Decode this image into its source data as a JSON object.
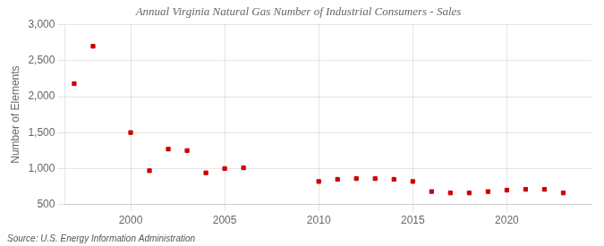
{
  "chart_data": {
    "type": "scatter",
    "title": "Annual Virginia Natural Gas Number of Industrial Consumers - Sales",
    "ylabel": "Number of Elements",
    "annotation": "Source: U.S. Energy Information Administration",
    "x": [
      1997,
      1998,
      2000,
      2001,
      2002,
      2003,
      2004,
      2005,
      2006,
      2010,
      2011,
      2012,
      2013,
      2014,
      2015,
      2016,
      2017,
      2018,
      2019,
      2020,
      2021,
      2022,
      2023
    ],
    "values": [
      2180,
      2700,
      1500,
      970,
      1270,
      1250,
      940,
      1000,
      1010,
      820,
      850,
      860,
      860,
      850,
      820,
      680,
      660,
      660,
      680,
      700,
      710,
      710,
      660
    ],
    "color": "#cc0000",
    "marker": "square",
    "xlim": [
      1996.5,
      2024.5
    ],
    "xticks": [
      2000,
      2005,
      2010,
      2015,
      2020
    ],
    "ylim": [
      500,
      3000
    ],
    "yticks": [
      500,
      {
        "value": 1000,
        "label": "1,000"
      },
      {
        "value": 1500,
        "label": "1,500"
      },
      {
        "value": 2000,
        "label": "2,000"
      },
      {
        "value": 2500,
        "label": "2,500"
      },
      {
        "value": 3000,
        "label": "3,000"
      }
    ],
    "grid": true
  }
}
